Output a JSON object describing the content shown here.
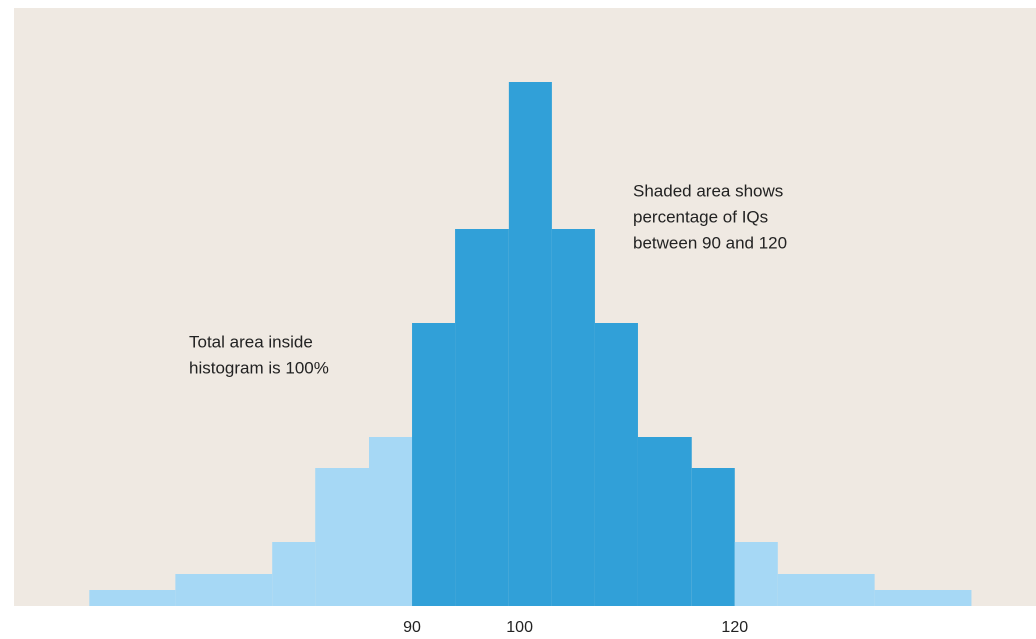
{
  "chart_data": {
    "type": "histogram",
    "bins": [
      60,
      68,
      77,
      81,
      86,
      90,
      94,
      99,
      103,
      107,
      111,
      116,
      120,
      124,
      133,
      142
    ],
    "values": [
      16,
      32,
      64,
      138,
      169,
      283,
      377,
      524,
      377,
      283,
      169,
      138,
      64,
      32,
      16
    ],
    "color": "#a6d8f5",
    "highlight_color": "#31a0d8",
    "highlight_range": [
      90,
      120
    ],
    "xlim": [
      53,
      148
    ],
    "xticks": [
      90,
      100,
      120
    ],
    "annotations": [
      {
        "lines": [
          "Shaded area shows",
          "percentage of IQs",
          "between 90 and 120"
        ]
      },
      {
        "lines": [
          "Total area inside",
          "histogram is 100%"
        ]
      }
    ]
  }
}
